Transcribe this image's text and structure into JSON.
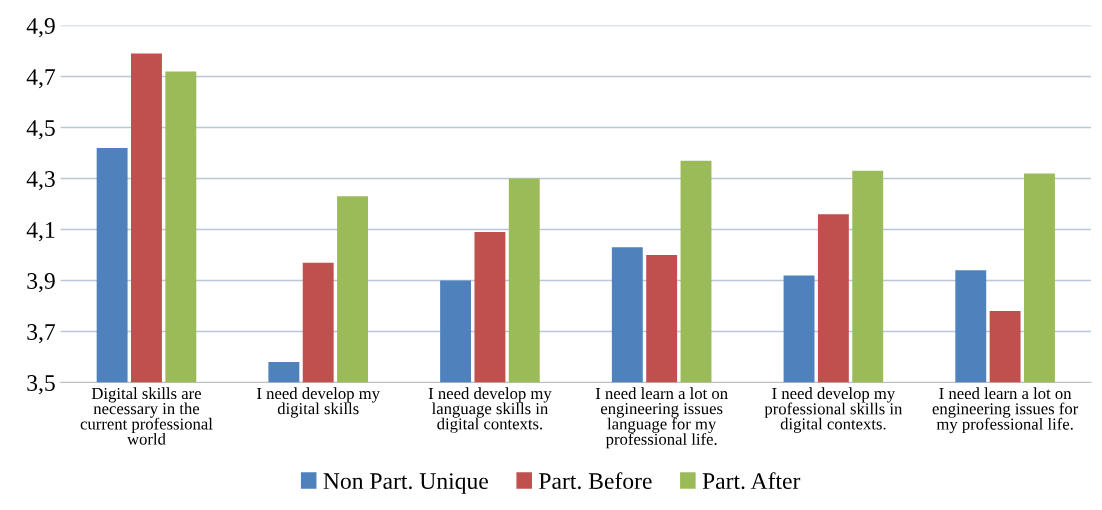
{
  "chart_data": {
    "type": "bar",
    "categories": [
      "Digital skills are\nnecessary in the\ncurrent professional\nworld",
      "I need develop my\ndigital skills",
      "I need develop my\nlanguage skills in\ndigital contexts.",
      "I need learn a lot on\nengineering issues\nlanguage for my\nprofessional life.",
      "I need develop my\nprofessional skills in\ndigital contexts.",
      "I need learn a lot on\nengineering issues for\nmy professional life."
    ],
    "series": [
      {
        "name": "Non Part. Unique",
        "color": "#4f81bd",
        "values": [
          4.42,
          3.58,
          3.9,
          4.03,
          3.92,
          3.94
        ]
      },
      {
        "name": "Part. Before",
        "color": "#c0504d",
        "values": [
          4.79,
          3.97,
          4.09,
          4.0,
          4.16,
          3.78
        ]
      },
      {
        "name": "Part. After",
        "color": "#9bbb59",
        "values": [
          4.72,
          4.23,
          4.3,
          4.37,
          4.33,
          4.32
        ]
      }
    ],
    "ylim": [
      3.5,
      4.9
    ],
    "yticks": [
      {
        "value": 3.5,
        "label": "3,5"
      },
      {
        "value": 3.7,
        "label": "3,7"
      },
      {
        "value": 3.9,
        "label": "3,9"
      },
      {
        "value": 4.1,
        "label": "4,1"
      },
      {
        "value": 4.3,
        "label": "4,3"
      },
      {
        "value": 4.5,
        "label": "4,5"
      },
      {
        "value": 4.7,
        "label": "4,7"
      },
      {
        "value": 4.9,
        "label": "4,9"
      }
    ],
    "grid": "y",
    "legend": "bottom"
  }
}
